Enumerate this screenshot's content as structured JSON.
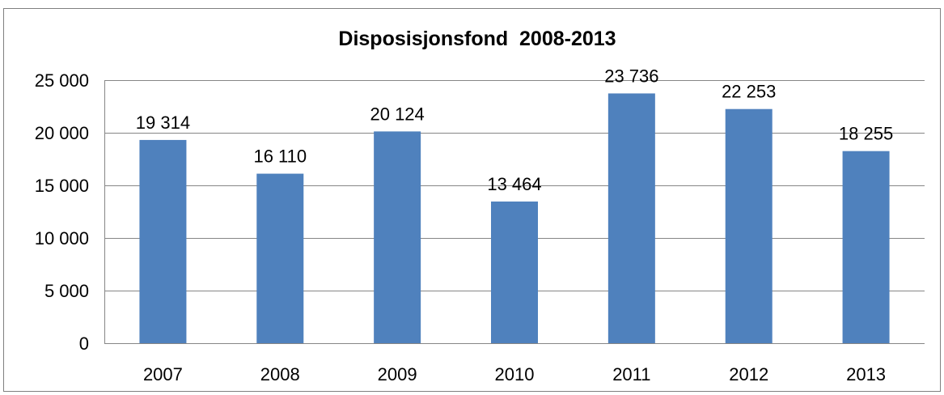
{
  "chart_data": {
    "type": "bar",
    "title": "Disposisjonsfond  2008-2013",
    "xlabel": "",
    "ylabel": "",
    "categories": [
      "2007",
      "2008",
      "2009",
      "2010",
      "2011",
      "2012",
      "2013"
    ],
    "values": [
      19314,
      16110,
      20124,
      13464,
      23736,
      22253,
      18255
    ],
    "value_labels": [
      "19 314",
      "16 110",
      "20 124",
      "13 464",
      "23 736",
      "22 253",
      "18 255"
    ],
    "y_ticks": [
      0,
      5000,
      10000,
      15000,
      20000,
      25000
    ],
    "y_tick_labels": [
      "0",
      "5 000",
      "10 000",
      "15 000",
      "20 000",
      "25 000"
    ],
    "ylim": [
      0,
      25000
    ],
    "grid": true,
    "legend": "none",
    "bar_color": "#4f81bd",
    "grid_color": "#868686"
  }
}
